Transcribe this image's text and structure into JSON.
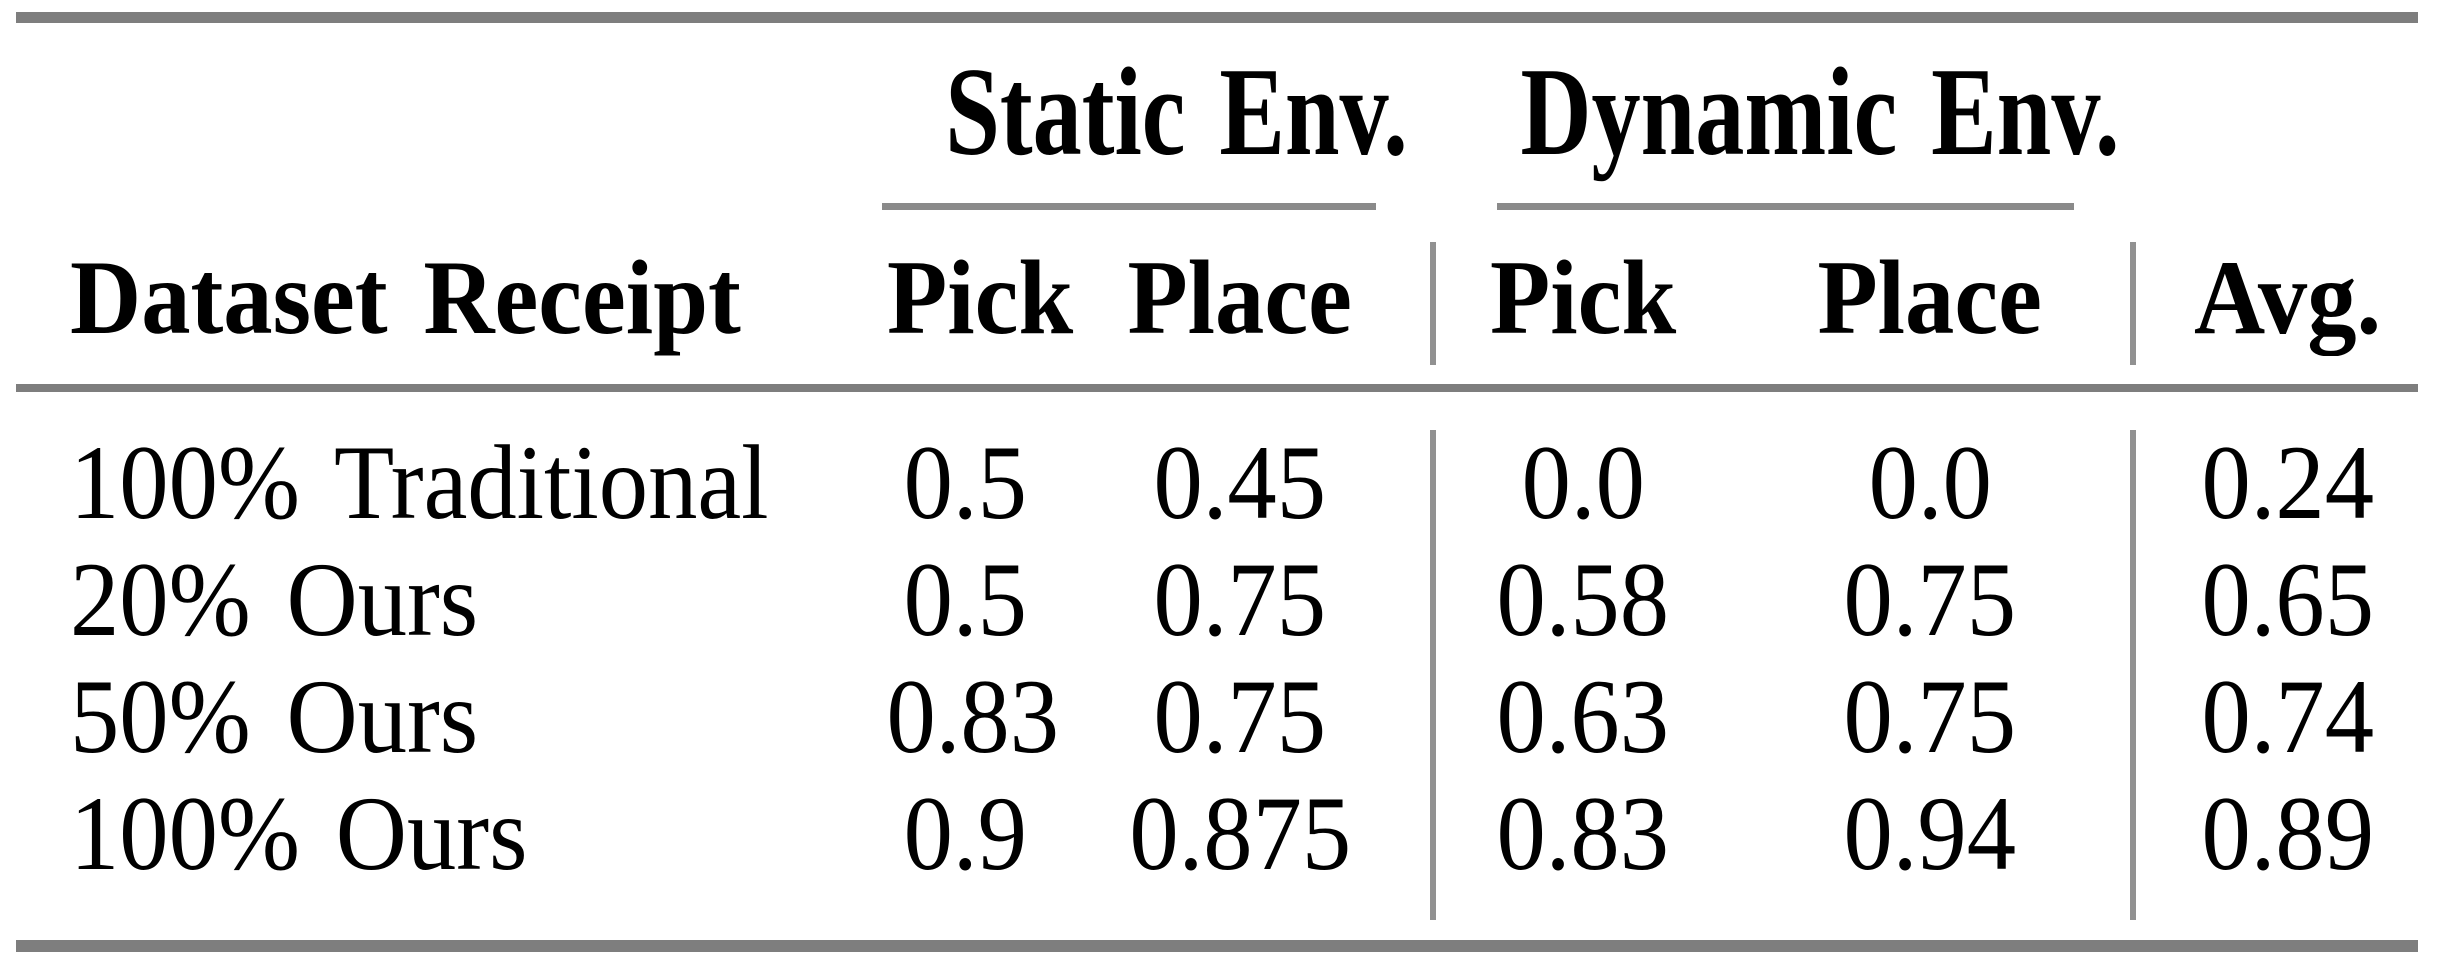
{
  "table": {
    "group_headers": [
      "Static Env.",
      "Dynamic Env."
    ],
    "column_headers": [
      "Dataset Receipt",
      "Pick",
      "Place",
      "Pick",
      "Place",
      "Avg."
    ],
    "rows": [
      {
        "label": "100% Traditional",
        "values": [
          "0.5",
          "0.45",
          "0.0",
          "0.0",
          "0.24"
        ]
      },
      {
        "label": "20% Ours",
        "values": [
          "0.5",
          "0.75",
          "0.58",
          "0.75",
          "0.65"
        ]
      },
      {
        "label": "50% Ours",
        "values": [
          "0.83",
          "0.75",
          "0.63",
          "0.75",
          "0.74"
        ]
      },
      {
        "label": "100% Ours",
        "values": [
          "0.9",
          "0.875",
          "0.83",
          "0.94",
          "0.89"
        ]
      }
    ],
    "colors": {
      "text": "#000000",
      "rule": "#7e7e7e",
      "cmidrule": "#8a8a8a",
      "vline": "#919191",
      "background": "#ffffff"
    }
  }
}
